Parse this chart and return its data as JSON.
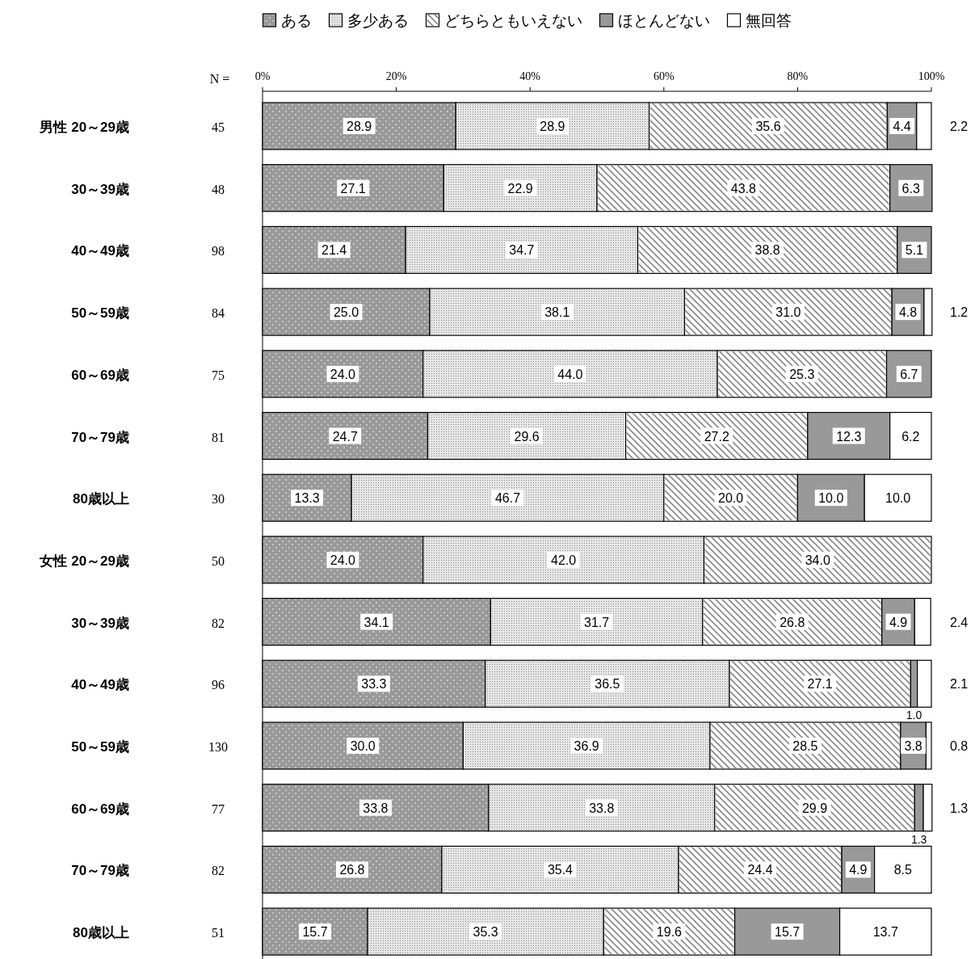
{
  "chart_data": {
    "type": "bar",
    "orientation": "horizontal",
    "stacked": true,
    "legend": "top",
    "grid": false,
    "categories": [
      "男性  20～29歳",
      "30～39歳",
      "40～49歳",
      "50～59歳",
      "60～69歳",
      "70～79歳",
      "80歳以上",
      "女性  20～29歳",
      "30～39歳",
      "40～49歳",
      "50～59歳",
      "60～69歳",
      "70～79歳",
      "80歳以上"
    ],
    "xlim": [
      0,
      100
    ],
    "xticks": [
      {
        "value": 0,
        "label": "0%"
      },
      {
        "value": 20,
        "label": "20%"
      },
      {
        "value": 40,
        "label": "40%"
      },
      {
        "value": 60,
        "label": "60%"
      },
      {
        "value": 80,
        "label": "80%"
      },
      {
        "value": 100,
        "label": "100%"
      }
    ],
    "annotations": [
      "N =",
      "45",
      "48",
      "98",
      "84",
      "75",
      "81",
      "30",
      "50",
      "82",
      "96",
      "130",
      "77",
      "82",
      "51"
    ],
    "series": [
      {
        "name": "ある",
        "color": "#999999",
        "values": [
          28.9,
          27.1,
          21.4,
          25.0,
          24.0,
          24.7,
          13.3,
          24.0,
          34.1,
          33.3,
          30.0,
          33.8,
          26.8,
          15.7
        ],
        "value_labels": [
          "28.9",
          "27.1",
          "21.4",
          "25.0",
          "24.0",
          "24.7",
          "13.3",
          "24.0",
          "34.1",
          "33.3",
          "30.0",
          "33.8",
          "26.8",
          "15.7"
        ]
      },
      {
        "name": "多少ある",
        "color": "#e6e6e6",
        "values": [
          28.9,
          22.9,
          34.7,
          38.1,
          44.0,
          29.6,
          46.7,
          42.0,
          31.7,
          36.5,
          36.9,
          33.8,
          35.4,
          35.3
        ],
        "value_labels": [
          "28.9",
          "22.9",
          "34.7",
          "38.1",
          "44.0",
          "29.6",
          "46.7",
          "42.0",
          "31.7",
          "36.5",
          "36.9",
          "33.8",
          "35.4",
          "35.3"
        ]
      },
      {
        "name": "どちらともいえない",
        "color": "#ffffff",
        "values": [
          35.6,
          43.8,
          38.8,
          31.0,
          25.3,
          27.2,
          20.0,
          34.0,
          26.8,
          27.1,
          28.5,
          29.9,
          24.4,
          19.6
        ],
        "value_labels": [
          "35.6",
          "43.8",
          "38.8",
          "31.0",
          "25.3",
          "27.2",
          "20.0",
          "34.0",
          "26.8",
          "27.1",
          "28.5",
          "29.9",
          "24.4",
          "19.6"
        ]
      },
      {
        "name": "ほとんどない",
        "color": "#999999",
        "values": [
          4.4,
          6.3,
          5.1,
          4.8,
          6.7,
          12.3,
          10.0,
          null,
          4.9,
          1.0,
          3.8,
          1.3,
          4.9,
          15.7
        ],
        "value_labels": [
          "4.4",
          "6.3",
          "5.1",
          "4.8",
          "6.7",
          "12.3",
          "10.0",
          null,
          "4.9",
          "1.0",
          "3.8",
          "1.3",
          "4.9",
          "15.7"
        ]
      },
      {
        "name": "無回答",
        "color": "#ffffff",
        "values": [
          2.2,
          null,
          null,
          1.2,
          null,
          6.2,
          10.0,
          null,
          2.4,
          2.1,
          0.8,
          1.3,
          8.5,
          13.7
        ],
        "value_labels": [
          "2.2",
          null,
          null,
          "1.2",
          null,
          "6.2",
          "10.0",
          null,
          "2.4",
          "2.1",
          "0.8",
          "1.3",
          "8.5",
          "13.7"
        ]
      }
    ]
  }
}
